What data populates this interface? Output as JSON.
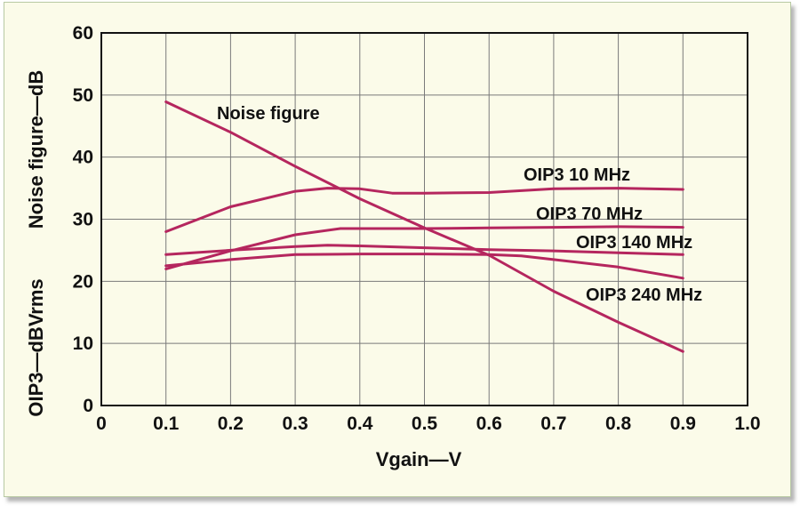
{
  "chart_data": {
    "type": "line",
    "title": "",
    "xlabel": "Vgain—V",
    "ylabel_top": "Noise figure—dB",
    "ylabel_bottom": "OIP3—dBVrms",
    "xlim": [
      0,
      1.0
    ],
    "ylim": [
      0,
      60
    ],
    "x_ticks": [
      "0",
      "0.1",
      "0.2",
      "0.3",
      "0.4",
      "0.5",
      "0.6",
      "0.7",
      "0.8",
      "0.9",
      "1.0"
    ],
    "y_ticks": [
      "0",
      "10",
      "20",
      "30",
      "40",
      "50",
      "60"
    ],
    "grid": true,
    "colors": {
      "series": "#b5265e",
      "grid": "#7a7a7a",
      "axis": "#111111",
      "background": "#fbfbe9",
      "border": "#b8c9a4"
    },
    "series": [
      {
        "name": "Noise figure",
        "x": [
          0.1,
          0.2,
          0.3,
          0.4,
          0.5,
          0.6,
          0.7,
          0.8,
          0.9
        ],
        "y": [
          48.9,
          44.0,
          38.5,
          33.3,
          28.6,
          24.2,
          18.4,
          13.4,
          8.7
        ]
      },
      {
        "name": "OIP3 10 MHz",
        "x": [
          0.1,
          0.2,
          0.3,
          0.35,
          0.4,
          0.45,
          0.5,
          0.6,
          0.7,
          0.8,
          0.9
        ],
        "y": [
          28.0,
          32.0,
          34.5,
          35.0,
          34.9,
          34.2,
          34.2,
          34.3,
          34.9,
          35.0,
          34.8
        ]
      },
      {
        "name": "OIP3 70 MHz",
        "x": [
          0.1,
          0.2,
          0.3,
          0.37,
          0.4,
          0.5,
          0.6,
          0.7,
          0.8,
          0.9
        ],
        "y": [
          22.0,
          24.9,
          27.5,
          28.5,
          28.5,
          28.5,
          28.6,
          28.7,
          28.8,
          28.7
        ]
      },
      {
        "name": "OIP3 140 MHz",
        "x": [
          0.1,
          0.2,
          0.3,
          0.35,
          0.4,
          0.5,
          0.6,
          0.7,
          0.8,
          0.9
        ],
        "y": [
          24.3,
          25.0,
          25.6,
          25.8,
          25.7,
          25.4,
          25.1,
          24.9,
          24.6,
          24.3
        ]
      },
      {
        "name": "OIP3 240 MHz",
        "x": [
          0.1,
          0.2,
          0.3,
          0.4,
          0.5,
          0.6,
          0.65,
          0.7,
          0.8,
          0.9
        ],
        "y": [
          22.5,
          23.5,
          24.3,
          24.4,
          24.4,
          24.3,
          24.1,
          23.5,
          22.3,
          20.5
        ]
      }
    ]
  }
}
